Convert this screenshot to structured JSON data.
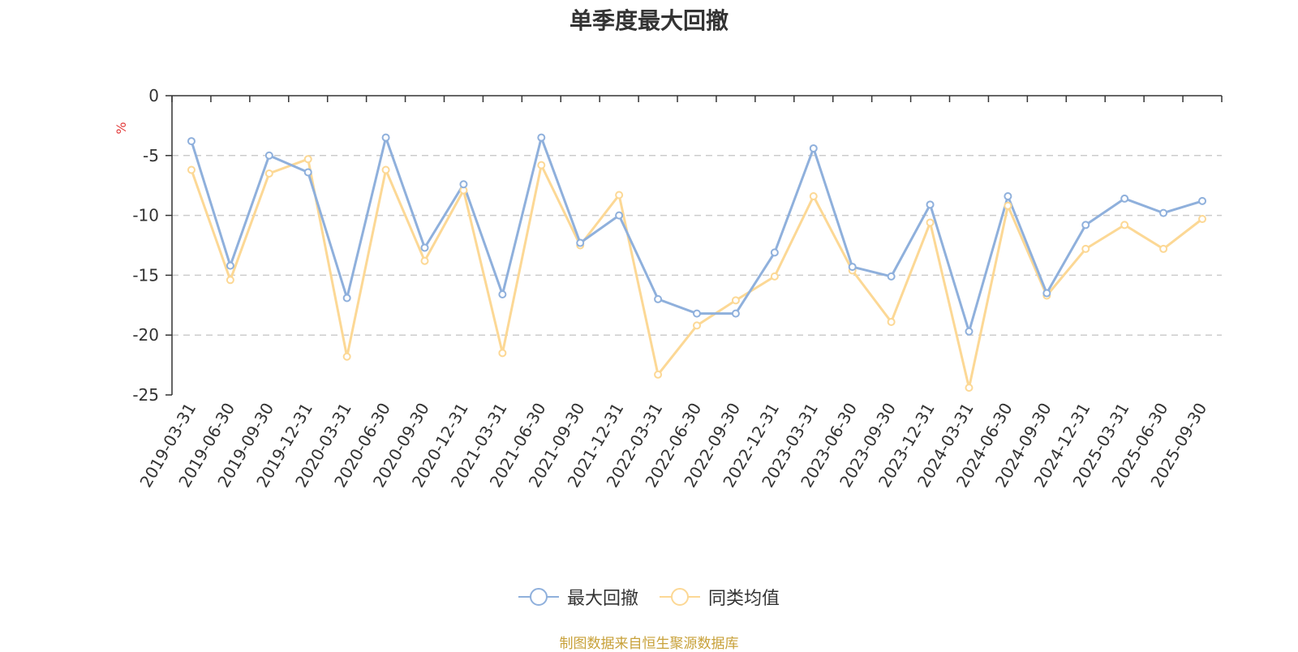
{
  "chart_data": {
    "type": "line",
    "title": "单季度最大回撤",
    "ylabel": "%",
    "ylim": [
      -25,
      0
    ],
    "yticks": [
      0,
      -5,
      -10,
      -15,
      -20,
      -25
    ],
    "grid": true,
    "legend_position": "bottom",
    "categories": [
      "2019-03-31",
      "2019-06-30",
      "2019-09-30",
      "2019-12-31",
      "2020-03-31",
      "2020-06-30",
      "2020-09-30",
      "2020-12-31",
      "2021-03-31",
      "2021-06-30",
      "2021-09-30",
      "2021-12-31",
      "2022-03-31",
      "2022-06-30",
      "2022-09-30",
      "2022-12-31",
      "2023-03-31",
      "2023-06-30",
      "2023-09-30",
      "2023-12-31",
      "2024-03-31",
      "2024-06-30",
      "2024-09-30",
      "2024-12-31",
      "2025-03-31",
      "2025-06-30",
      "2025-09-30"
    ],
    "series": [
      {
        "name": "最大回撤",
        "color": "#8fb0dc",
        "values": [
          -3.8,
          -14.2,
          -5.0,
          -6.4,
          -16.9,
          -3.5,
          -12.7,
          -7.4,
          -16.6,
          -3.5,
          -12.3,
          -10.0,
          -17.0,
          -18.2,
          -18.2,
          -13.1,
          -4.4,
          -14.3,
          -15.1,
          -9.1,
          -19.7,
          -8.4,
          -16.5,
          -10.8,
          -8.6,
          -9.8,
          -8.8
        ]
      },
      {
        "name": "同类均值",
        "color": "#fcd895",
        "values": [
          -6.2,
          -15.4,
          -6.5,
          -5.3,
          -21.8,
          -6.2,
          -13.8,
          -7.9,
          -21.5,
          -5.8,
          -12.5,
          -8.3,
          -23.3,
          -19.2,
          -17.1,
          -15.1,
          -8.4,
          -14.6,
          -18.9,
          -10.6,
          -24.4,
          -9.2,
          -16.7,
          -12.8,
          -10.8,
          -12.8,
          -10.3
        ]
      }
    ]
  },
  "source_note": "制图数据来自恒生聚源数据库"
}
